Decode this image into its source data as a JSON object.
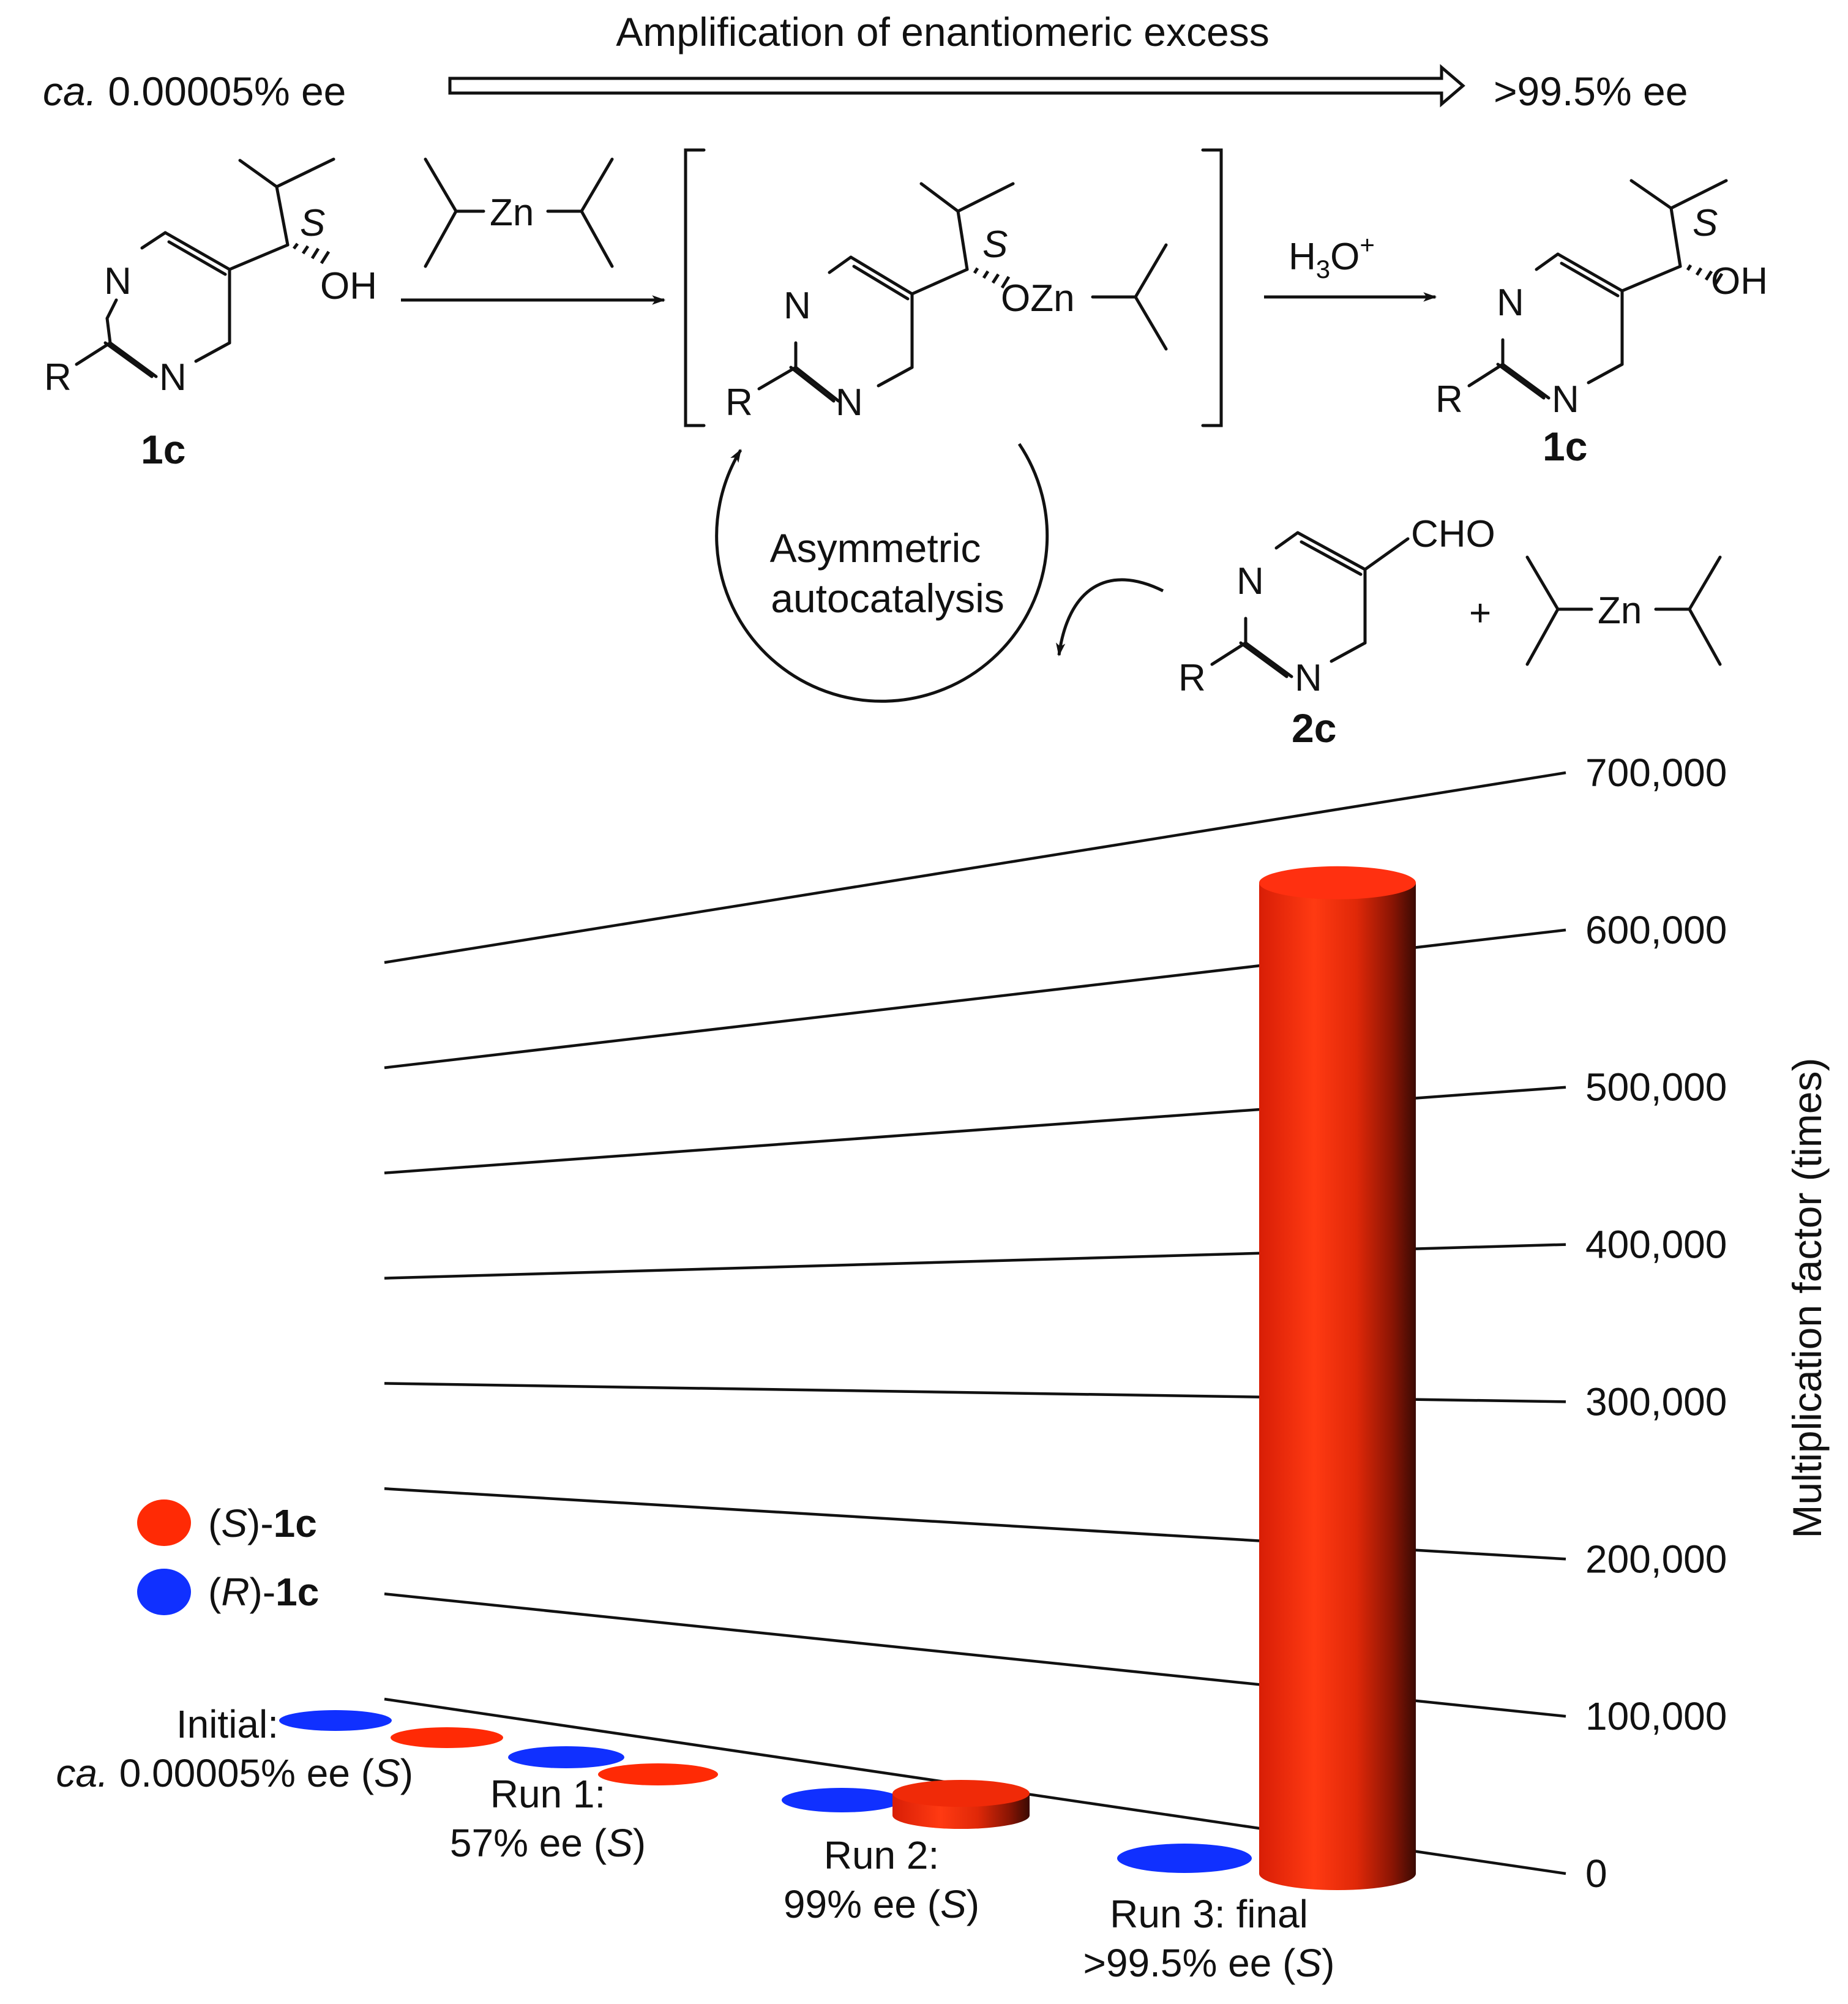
{
  "scheme": {
    "top_arrow_label": "Amplification of enantiomeric excess",
    "start_ee_italic": "ca.",
    "start_ee_value": " 0.00005% ee",
    "end_ee": ">99.5% ee",
    "reagent_zn": "Zn",
    "intermediate_ozn": "OZn",
    "oh": "OH",
    "stereo_s": "S",
    "r_group": "R",
    "n_atom": "N",
    "cho": "CHO",
    "plus": "+",
    "h3o_h": "H",
    "h3o_3": "3",
    "h3o_o": "O",
    "h3o_plus": "+",
    "compound_1c": "1c",
    "compound_2c": "2c",
    "cycle_line1": "Asymmetric",
    "cycle_line2": "autocatalysis"
  },
  "chart_data": {
    "type": "bar",
    "style": "3d-cylinder",
    "categories": [
      {
        "line1": "Initial:",
        "line2_italic": "ca.",
        "line2": " 0.00005% ee (",
        "line2_s": "S",
        "line2_end": ")"
      },
      {
        "line1": "Run 1:",
        "line2": "57% ee (",
        "line2_s": "S",
        "line2_end": ")"
      },
      {
        "line1": "Run 2:",
        "line2": "99% ee (",
        "line2_s": "S",
        "line2_end": ")"
      },
      {
        "line1": "Run 3: final",
        "line2": ">99.5% ee (",
        "line2_s": "S",
        "line2_end": ")"
      }
    ],
    "series": [
      {
        "key": "S",
        "label_open": "(",
        "label_italic": "S",
        "label_close": ")-",
        "label_bold": "1c",
        "color": "#ff2a05",
        "values": [
          0,
          0,
          6000,
          630000
        ]
      },
      {
        "key": "R",
        "label_open": "(",
        "label_italic": "R",
        "label_close": ")-",
        "label_bold": "1c",
        "color": "#1030ff",
        "values": [
          0,
          0,
          0,
          0
        ]
      }
    ],
    "yticks": [
      "0",
      "100,000",
      "200,000",
      "300,000",
      "400,000",
      "500,000",
      "600,000",
      "700,000"
    ],
    "ytick_values": [
      0,
      100000,
      200000,
      300000,
      400000,
      500000,
      600000,
      700000
    ],
    "ylabel": "Multiplication factor (times)",
    "ylim": [
      0,
      700000
    ],
    "legend_position": "left"
  }
}
